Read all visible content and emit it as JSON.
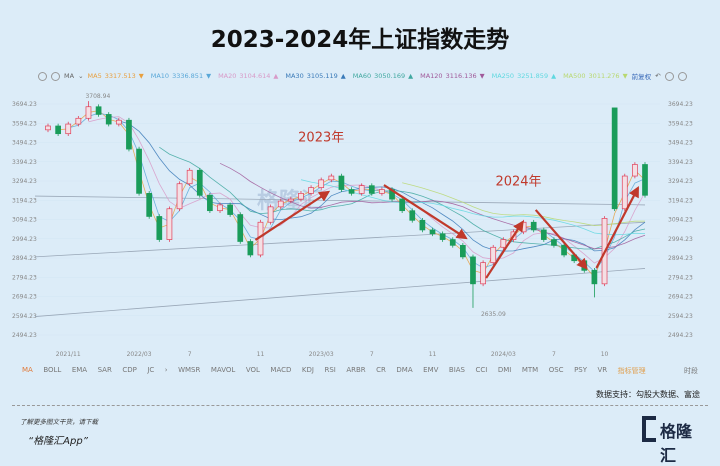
{
  "title": "2023-2024年上证指数走势",
  "legend": {
    "ma_selector": "MA",
    "items": [
      {
        "name": "MA5",
        "value": "3317.513",
        "trend": "▼",
        "color": "#e8a040"
      },
      {
        "name": "MA10",
        "value": "3336.851",
        "trend": "▼",
        "color": "#5aa8d8"
      },
      {
        "name": "MA20",
        "value": "3104.614",
        "trend": "▲",
        "color": "#d89ac8"
      },
      {
        "name": "MA30",
        "value": "3105.119",
        "trend": "▲",
        "color": "#3a7ab8"
      },
      {
        "name": "MA60",
        "value": "3050.169",
        "trend": "▲",
        "color": "#40a8a0"
      },
      {
        "name": "MA120",
        "value": "3116.136",
        "trend": "▼",
        "color": "#a05a9a"
      },
      {
        "name": "MA250",
        "value": "3251.859",
        "trend": "▲",
        "color": "#60d8e0"
      },
      {
        "name": "MA500",
        "value": "3011.276",
        "trend": "▼",
        "color": "#b8d870"
      }
    ],
    "adjust": "前复权"
  },
  "chart_data": {
    "type": "candlestick",
    "y_ticks": [
      "3694.23",
      "3594.23",
      "3494.23",
      "3394.23",
      "3294.23",
      "3194.23",
      "3094.23",
      "2994.23",
      "2894.23",
      "2794.23",
      "2694.23",
      "2594.23",
      "2494.23"
    ],
    "ylim": [
      2494.23,
      3694.23
    ],
    "x_ticks": [
      {
        "label": "2021/11",
        "index": 2
      },
      {
        "label": "2022/03",
        "index": 9
      },
      {
        "label": "7",
        "index": 14
      },
      {
        "label": "11",
        "index": 21
      },
      {
        "label": "2023/03",
        "index": 27
      },
      {
        "label": "7",
        "index": 32
      },
      {
        "label": "11",
        "index": 38
      },
      {
        "label": "2024/03",
        "index": 45
      },
      {
        "label": "7",
        "index": 50
      },
      {
        "label": "10",
        "index": 55
      }
    ],
    "close": [
      3580,
      3540,
      3590,
      3620,
      3680,
      3640,
      3590,
      3610,
      3460,
      3230,
      3110,
      2990,
      3150,
      3280,
      3350,
      3220,
      3140,
      3170,
      3120,
      2980,
      2910,
      3080,
      3160,
      3190,
      3200,
      3230,
      3260,
      3300,
      3320,
      3250,
      3230,
      3270,
      3230,
      3250,
      3200,
      3140,
      3090,
      3040,
      3020,
      2990,
      2960,
      2900,
      2760,
      2870,
      2950,
      2990,
      3030,
      3080,
      3040,
      2990,
      2960,
      2910,
      2880,
      2830,
      2760,
      3100,
      3150,
      3320,
      3380,
      3220
    ],
    "first_open": 3560,
    "open_overrides": {
      "56": 3674
    },
    "high_overrides": {
      "4": 3708.94,
      "56": 3674
    },
    "low_overrides": {
      "42": 2635.09,
      "54": 2690
    },
    "high_label": "3708.94",
    "low_label": "2635.09",
    "up_color": "#e0405a",
    "down_color": "#1a9c5a",
    "trend_lines": [
      [
        2590,
        2840
      ],
      [
        2900,
        3080
      ],
      [
        3216,
        3170
      ]
    ],
    "annotations": [
      {
        "text": "2023年",
        "index": 27,
        "price": 3500
      },
      {
        "text": "2024年",
        "index": 46.5,
        "price": 3270
      }
    ],
    "arrows": [
      {
        "from": [
          20.5,
          2988
        ],
        "to": [
          27.7,
          3237
        ]
      },
      {
        "from": [
          33.2,
          3273
        ],
        "to": [
          41.3,
          2998
        ]
      },
      {
        "from": [
          43.3,
          2790
        ],
        "to": [
          46.9,
          3081
        ]
      },
      {
        "from": [
          48.2,
          3144
        ],
        "to": [
          53.2,
          2842
        ]
      },
      {
        "from": [
          54.2,
          2842
        ],
        "to": [
          58.3,
          3258
        ]
      }
    ],
    "arrow_color": "#c0392b",
    "watermark": "格隆汇"
  },
  "tabs": [
    "MA",
    "BOLL",
    "EMA",
    "SAR",
    "CDP",
    "JC",
    "›",
    "WMSR",
    "MAVOL",
    "VOL",
    "MACD",
    "KDJ",
    "RSI",
    "ARBR",
    "CR",
    "DMA",
    "EMV",
    "BIAS",
    "CCI",
    "DMI",
    "MTM",
    "OSC",
    "PSY",
    "VR",
    "指标管理"
  ],
  "tabs_right": "时段",
  "source": "数据支持：勾股大数据、富途",
  "promo": {
    "line1": "了解更多图文干货，请下载",
    "line2": "“格隆汇App”"
  },
  "logo": {
    "text": "格隆汇",
    "watermark": "@格隆汇"
  }
}
